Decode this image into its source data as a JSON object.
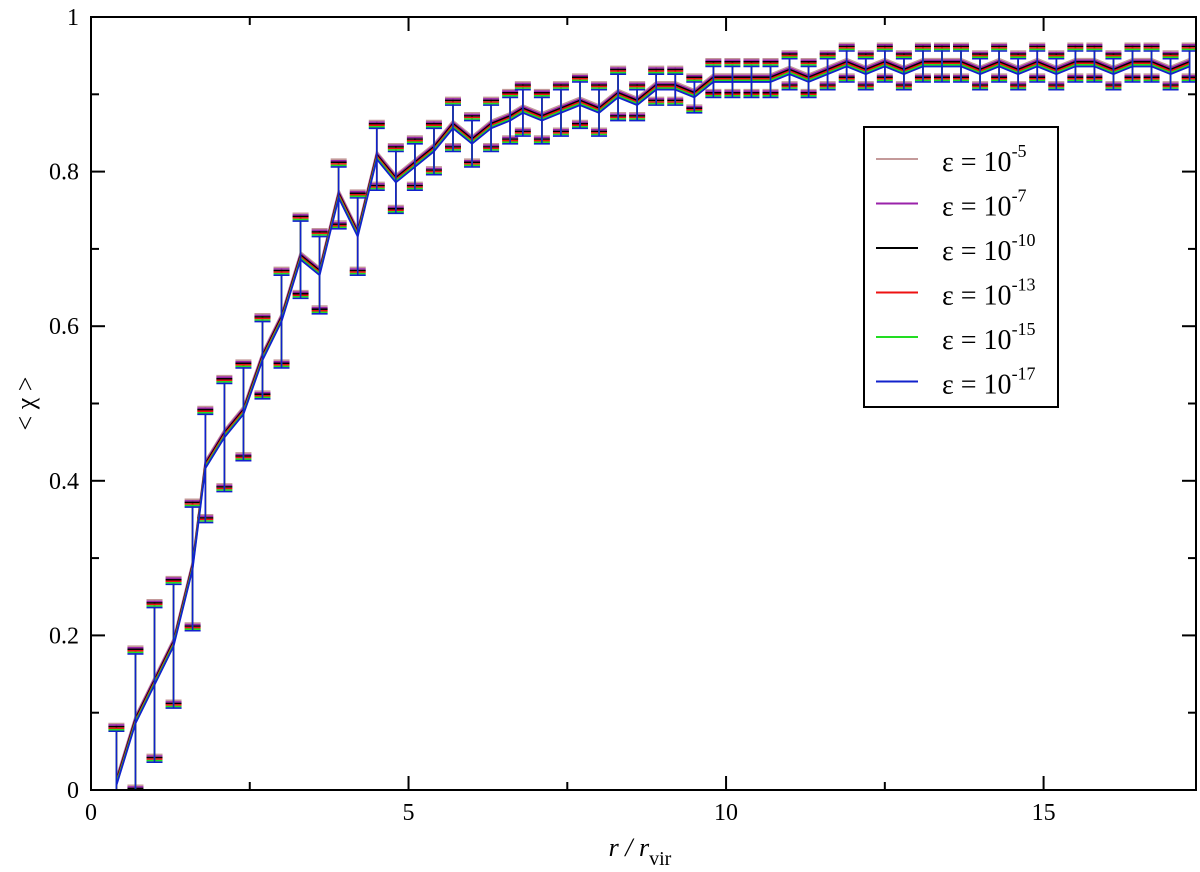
{
  "chart_data": {
    "type": "line",
    "xlabel_main": "r / r",
    "xlabel_sub": "vir",
    "ylabel": "< χ >",
    "xlim": [
      0,
      17.4
    ],
    "ylim": [
      0,
      1
    ],
    "x_ticks": [
      0,
      5,
      10,
      15
    ],
    "x_tick_labels": [
      "0",
      "5",
      "10",
      "15"
    ],
    "y_ticks": [
      0,
      0.2,
      0.4,
      0.6,
      0.8,
      1
    ],
    "y_tick_labels": [
      "0",
      "0.2",
      "0.4",
      "0.6",
      "0.8",
      "1"
    ],
    "error_bars": true,
    "legend_position": "upper-right",
    "x": [
      0.4,
      0.7,
      1.0,
      1.3,
      1.6,
      1.8,
      2.1,
      2.4,
      2.7,
      3.0,
      3.3,
      3.6,
      3.9,
      4.2,
      4.5,
      4.8,
      5.1,
      5.4,
      5.7,
      6.0,
      6.3,
      6.6,
      6.8,
      7.1,
      7.4,
      7.7,
      8.0,
      8.3,
      8.6,
      8.9,
      9.2,
      9.5,
      9.8,
      10.1,
      10.4,
      10.7,
      11.0,
      11.3,
      11.6,
      11.9,
      12.2,
      12.5,
      12.8,
      13.1,
      13.4,
      13.7,
      14.0,
      14.3,
      14.6,
      14.9,
      15.2,
      15.5,
      15.8,
      16.1,
      16.4,
      16.7,
      17.0,
      17.3
    ],
    "series": [
      {
        "name": "ε = 10",
        "exponent": "-5",
        "color": "#c49a9a",
        "offset": 0.006,
        "values": [
          0.01,
          0.09,
          0.14,
          0.19,
          0.29,
          0.42,
          0.46,
          0.49,
          0.56,
          0.61,
          0.69,
          0.67,
          0.77,
          0.72,
          0.82,
          0.79,
          0.81,
          0.83,
          0.86,
          0.84,
          0.86,
          0.87,
          0.88,
          0.87,
          0.88,
          0.89,
          0.88,
          0.9,
          0.89,
          0.91,
          0.91,
          0.9,
          0.92,
          0.92,
          0.92,
          0.92,
          0.93,
          0.92,
          0.93,
          0.94,
          0.93,
          0.94,
          0.93,
          0.94,
          0.94,
          0.94,
          0.93,
          0.94,
          0.93,
          0.94,
          0.93,
          0.94,
          0.94,
          0.93,
          0.94,
          0.94,
          0.93,
          0.94
        ],
        "errors": [
          0.07,
          0.09,
          0.1,
          0.08,
          0.08,
          0.07,
          0.07,
          0.06,
          0.05,
          0.06,
          0.05,
          0.05,
          0.04,
          0.05,
          0.04,
          0.04,
          0.03,
          0.03,
          0.03,
          0.03,
          0.03,
          0.03,
          0.03,
          0.03,
          0.03,
          0.03,
          0.03,
          0.03,
          0.02,
          0.02,
          0.02,
          0.02,
          0.02,
          0.02,
          0.02,
          0.02,
          0.02,
          0.02,
          0.02,
          0.02,
          0.02,
          0.02,
          0.02,
          0.02,
          0.02,
          0.02,
          0.02,
          0.02,
          0.02,
          0.02,
          0.02,
          0.02,
          0.02,
          0.02,
          0.02,
          0.02,
          0.02,
          0.02
        ]
      },
      {
        "name": "ε = 10",
        "exponent": "-7",
        "color": "#9a22aa",
        "offset": 0.004,
        "values": [
          0.01,
          0.09,
          0.14,
          0.19,
          0.29,
          0.42,
          0.46,
          0.49,
          0.56,
          0.61,
          0.69,
          0.67,
          0.77,
          0.72,
          0.82,
          0.79,
          0.81,
          0.83,
          0.86,
          0.84,
          0.86,
          0.87,
          0.88,
          0.87,
          0.88,
          0.89,
          0.88,
          0.9,
          0.89,
          0.91,
          0.91,
          0.9,
          0.92,
          0.92,
          0.92,
          0.92,
          0.93,
          0.92,
          0.93,
          0.94,
          0.93,
          0.94,
          0.93,
          0.94,
          0.94,
          0.94,
          0.93,
          0.94,
          0.93,
          0.94,
          0.93,
          0.94,
          0.94,
          0.93,
          0.94,
          0.94,
          0.93,
          0.94
        ],
        "errors": [
          0.07,
          0.09,
          0.1,
          0.08,
          0.08,
          0.07,
          0.07,
          0.06,
          0.05,
          0.06,
          0.05,
          0.05,
          0.04,
          0.05,
          0.04,
          0.04,
          0.03,
          0.03,
          0.03,
          0.03,
          0.03,
          0.03,
          0.03,
          0.03,
          0.03,
          0.03,
          0.03,
          0.03,
          0.02,
          0.02,
          0.02,
          0.02,
          0.02,
          0.02,
          0.02,
          0.02,
          0.02,
          0.02,
          0.02,
          0.02,
          0.02,
          0.02,
          0.02,
          0.02,
          0.02,
          0.02,
          0.02,
          0.02,
          0.02,
          0.02,
          0.02,
          0.02,
          0.02,
          0.02,
          0.02,
          0.02,
          0.02,
          0.02
        ]
      },
      {
        "name": "ε = 10",
        "exponent": "-10",
        "color": "#000000",
        "offset": 0.002,
        "values": [
          0.01,
          0.09,
          0.14,
          0.19,
          0.29,
          0.42,
          0.46,
          0.49,
          0.56,
          0.61,
          0.69,
          0.67,
          0.77,
          0.72,
          0.82,
          0.79,
          0.81,
          0.83,
          0.86,
          0.84,
          0.86,
          0.87,
          0.88,
          0.87,
          0.88,
          0.89,
          0.88,
          0.9,
          0.89,
          0.91,
          0.91,
          0.9,
          0.92,
          0.92,
          0.92,
          0.92,
          0.93,
          0.92,
          0.93,
          0.94,
          0.93,
          0.94,
          0.93,
          0.94,
          0.94,
          0.94,
          0.93,
          0.94,
          0.93,
          0.94,
          0.93,
          0.94,
          0.94,
          0.93,
          0.94,
          0.94,
          0.93,
          0.94
        ],
        "errors": [
          0.07,
          0.09,
          0.1,
          0.08,
          0.08,
          0.07,
          0.07,
          0.06,
          0.05,
          0.06,
          0.05,
          0.05,
          0.04,
          0.05,
          0.04,
          0.04,
          0.03,
          0.03,
          0.03,
          0.03,
          0.03,
          0.03,
          0.03,
          0.03,
          0.03,
          0.03,
          0.03,
          0.03,
          0.02,
          0.02,
          0.02,
          0.02,
          0.02,
          0.02,
          0.02,
          0.02,
          0.02,
          0.02,
          0.02,
          0.02,
          0.02,
          0.02,
          0.02,
          0.02,
          0.02,
          0.02,
          0.02,
          0.02,
          0.02,
          0.02,
          0.02,
          0.02,
          0.02,
          0.02,
          0.02,
          0.02,
          0.02,
          0.02
        ]
      },
      {
        "name": "ε = 10",
        "exponent": "-13",
        "color": "#ee1111",
        "offset": 0.0,
        "values": [
          0.01,
          0.09,
          0.14,
          0.19,
          0.29,
          0.42,
          0.46,
          0.49,
          0.56,
          0.61,
          0.69,
          0.67,
          0.77,
          0.72,
          0.82,
          0.79,
          0.81,
          0.83,
          0.86,
          0.84,
          0.86,
          0.87,
          0.88,
          0.87,
          0.88,
          0.89,
          0.88,
          0.9,
          0.89,
          0.91,
          0.91,
          0.9,
          0.92,
          0.92,
          0.92,
          0.92,
          0.93,
          0.92,
          0.93,
          0.94,
          0.93,
          0.94,
          0.93,
          0.94,
          0.94,
          0.94,
          0.93,
          0.94,
          0.93,
          0.94,
          0.93,
          0.94,
          0.94,
          0.93,
          0.94,
          0.94,
          0.93,
          0.94
        ],
        "errors": [
          0.07,
          0.09,
          0.1,
          0.08,
          0.08,
          0.07,
          0.07,
          0.06,
          0.05,
          0.06,
          0.05,
          0.05,
          0.04,
          0.05,
          0.04,
          0.04,
          0.03,
          0.03,
          0.03,
          0.03,
          0.03,
          0.03,
          0.03,
          0.03,
          0.03,
          0.03,
          0.03,
          0.03,
          0.02,
          0.02,
          0.02,
          0.02,
          0.02,
          0.02,
          0.02,
          0.02,
          0.02,
          0.02,
          0.02,
          0.02,
          0.02,
          0.02,
          0.02,
          0.02,
          0.02,
          0.02,
          0.02,
          0.02,
          0.02,
          0.02,
          0.02,
          0.02,
          0.02,
          0.02,
          0.02,
          0.02,
          0.02,
          0.02
        ]
      },
      {
        "name": "ε = 10",
        "exponent": "-15",
        "color": "#22dd22",
        "offset": -0.002,
        "values": [
          0.01,
          0.09,
          0.14,
          0.19,
          0.29,
          0.42,
          0.46,
          0.49,
          0.56,
          0.61,
          0.69,
          0.67,
          0.77,
          0.72,
          0.82,
          0.79,
          0.81,
          0.83,
          0.86,
          0.84,
          0.86,
          0.87,
          0.88,
          0.87,
          0.88,
          0.89,
          0.88,
          0.9,
          0.89,
          0.91,
          0.91,
          0.9,
          0.92,
          0.92,
          0.92,
          0.92,
          0.93,
          0.92,
          0.93,
          0.94,
          0.93,
          0.94,
          0.93,
          0.94,
          0.94,
          0.94,
          0.93,
          0.94,
          0.93,
          0.94,
          0.93,
          0.94,
          0.94,
          0.93,
          0.94,
          0.94,
          0.93,
          0.94
        ],
        "errors": [
          0.07,
          0.09,
          0.1,
          0.08,
          0.08,
          0.07,
          0.07,
          0.06,
          0.05,
          0.06,
          0.05,
          0.05,
          0.04,
          0.05,
          0.04,
          0.04,
          0.03,
          0.03,
          0.03,
          0.03,
          0.03,
          0.03,
          0.03,
          0.03,
          0.03,
          0.03,
          0.03,
          0.03,
          0.02,
          0.02,
          0.02,
          0.02,
          0.02,
          0.02,
          0.02,
          0.02,
          0.02,
          0.02,
          0.02,
          0.02,
          0.02,
          0.02,
          0.02,
          0.02,
          0.02,
          0.02,
          0.02,
          0.02,
          0.02,
          0.02,
          0.02,
          0.02,
          0.02,
          0.02,
          0.02,
          0.02,
          0.02,
          0.02
        ]
      },
      {
        "name": "ε = 10",
        "exponent": "-17",
        "color": "#1122cc",
        "offset": -0.004,
        "values": [
          0.01,
          0.09,
          0.14,
          0.19,
          0.29,
          0.42,
          0.46,
          0.49,
          0.56,
          0.61,
          0.69,
          0.67,
          0.77,
          0.72,
          0.82,
          0.79,
          0.81,
          0.83,
          0.86,
          0.84,
          0.86,
          0.87,
          0.88,
          0.87,
          0.88,
          0.89,
          0.88,
          0.9,
          0.89,
          0.91,
          0.91,
          0.9,
          0.92,
          0.92,
          0.92,
          0.92,
          0.93,
          0.92,
          0.93,
          0.94,
          0.93,
          0.94,
          0.93,
          0.94,
          0.94,
          0.94,
          0.93,
          0.94,
          0.93,
          0.94,
          0.93,
          0.94,
          0.94,
          0.93,
          0.94,
          0.94,
          0.93,
          0.94
        ],
        "errors": [
          0.07,
          0.09,
          0.1,
          0.08,
          0.08,
          0.07,
          0.07,
          0.06,
          0.05,
          0.06,
          0.05,
          0.05,
          0.04,
          0.05,
          0.04,
          0.04,
          0.03,
          0.03,
          0.03,
          0.03,
          0.03,
          0.03,
          0.03,
          0.03,
          0.03,
          0.03,
          0.03,
          0.03,
          0.02,
          0.02,
          0.02,
          0.02,
          0.02,
          0.02,
          0.02,
          0.02,
          0.02,
          0.02,
          0.02,
          0.02,
          0.02,
          0.02,
          0.02,
          0.02,
          0.02,
          0.02,
          0.02,
          0.02,
          0.02,
          0.02,
          0.02,
          0.02,
          0.02,
          0.02,
          0.02,
          0.02,
          0.02,
          0.02
        ]
      }
    ]
  }
}
